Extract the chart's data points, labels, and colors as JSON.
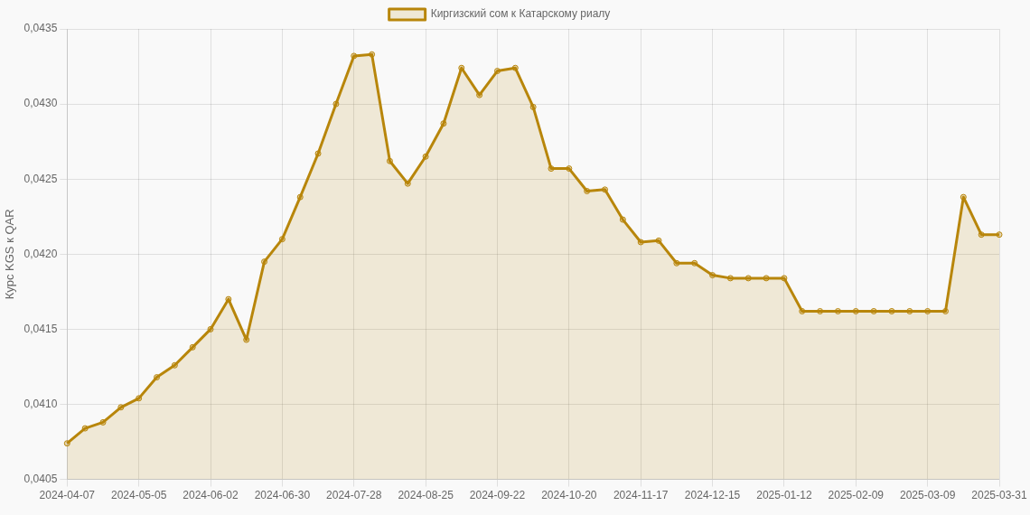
{
  "chart_data": {
    "type": "area",
    "ylabel": "Курс KGS к QAR",
    "legend": "top",
    "grid": true,
    "marker": "circle",
    "line_style": "solid",
    "categories": [
      "2024-04-07",
      null,
      null,
      null,
      "2024-05-05",
      null,
      null,
      null,
      "2024-06-02",
      null,
      null,
      null,
      "2024-06-30",
      null,
      null,
      null,
      "2024-07-28",
      null,
      null,
      null,
      "2024-08-25",
      null,
      null,
      null,
      "2024-09-22",
      null,
      null,
      null,
      "2024-10-20",
      null,
      null,
      null,
      "2024-11-17",
      null,
      null,
      null,
      "2024-12-15",
      null,
      null,
      null,
      "2025-01-12",
      null,
      null,
      null,
      "2025-02-09",
      null,
      null,
      null,
      "2025-03-09",
      null,
      null,
      null,
      "2025-03-31"
    ],
    "series": [
      {
        "name": "Киргизский сом к Катарскому риалу",
        "color": "#b8860b",
        "values": [
          0.04074,
          0.04084,
          0.04088,
          0.04098,
          0.04104,
          0.04118,
          0.04126,
          0.04138,
          0.0415,
          0.0417,
          0.04143,
          0.04195,
          0.0421,
          0.04238,
          0.04267,
          0.043,
          0.04332,
          0.04333,
          0.04262,
          0.04247,
          0.04265,
          0.04287,
          0.04324,
          0.04306,
          0.04322,
          0.04324,
          0.04298,
          0.04257,
          0.04257,
          0.04242,
          0.04243,
          0.04223,
          0.04208,
          0.04209,
          0.04194,
          0.04194,
          0.04186,
          0.04184,
          0.04184,
          0.04184,
          0.04184,
          0.04162,
          0.04162,
          0.04162,
          0.04162,
          0.04162,
          0.04162,
          0.04162,
          0.04162,
          0.04162,
          0.04238,
          0.04213,
          0.04213
        ]
      }
    ],
    "ylim": [
      0.0405,
      0.0435
    ],
    "yticks": [
      {
        "value": 0.0405,
        "label": "0,0405"
      },
      {
        "value": 0.041,
        "label": "0,0410"
      },
      {
        "value": 0.0415,
        "label": "0,0415"
      },
      {
        "value": 0.042,
        "label": "0,0420"
      },
      {
        "value": 0.0425,
        "label": "0,0425"
      },
      {
        "value": 0.043,
        "label": "0,0430"
      },
      {
        "value": 0.0435,
        "label": "0,0435"
      }
    ]
  }
}
